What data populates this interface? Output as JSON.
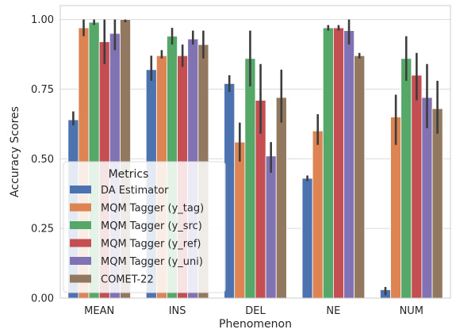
{
  "chart_data": {
    "type": "bar",
    "xlabel": "Phenomenon",
    "ylabel": "Accuracy Scores",
    "ylim": [
      0,
      1.05
    ],
    "yticks": [
      "0.00",
      "0.25",
      "0.50",
      "0.75",
      "1.00"
    ],
    "categories": [
      "MEAN",
      "INS",
      "DEL",
      "NE",
      "NUM"
    ],
    "grid": "horizontal",
    "legend": {
      "title": "Metrics",
      "placement": "lower-left"
    },
    "series": [
      {
        "name": "DA Estimator",
        "color": "#4c72b0",
        "values": [
          0.64,
          0.82,
          0.77,
          0.43,
          0.03
        ],
        "ci_low": [
          0.62,
          0.78,
          0.74,
          0.42,
          0.01
        ],
        "ci_high": [
          0.67,
          0.87,
          0.8,
          0.44,
          0.04
        ]
      },
      {
        "name": "MQM Tagger (y_tag)",
        "color": "#dd8452",
        "values": [
          0.97,
          0.87,
          0.56,
          0.6,
          0.65
        ],
        "ci_low": [
          0.94,
          0.86,
          0.49,
          0.55,
          0.55
        ],
        "ci_high": [
          1.0,
          0.89,
          0.63,
          0.66,
          0.73
        ]
      },
      {
        "name": "MQM Tagger (y_src)",
        "color": "#55a868",
        "values": [
          0.99,
          0.94,
          0.86,
          0.97,
          0.86
        ],
        "ci_low": [
          0.98,
          0.91,
          0.76,
          0.96,
          0.78
        ],
        "ci_high": [
          1.0,
          0.97,
          0.96,
          0.98,
          0.94
        ]
      },
      {
        "name": "MQM Tagger (y_ref)",
        "color": "#c44e52",
        "values": [
          0.92,
          0.87,
          0.71,
          0.97,
          0.8
        ],
        "ci_low": [
          0.84,
          0.83,
          0.59,
          0.96,
          0.71
        ],
        "ci_high": [
          1.0,
          0.91,
          0.84,
          0.98,
          0.88
        ]
      },
      {
        "name": "MQM Tagger (y_uni)",
        "color": "#8172b3",
        "values": [
          0.95,
          0.93,
          0.51,
          0.96,
          0.72
        ],
        "ci_low": [
          0.89,
          0.91,
          0.45,
          0.91,
          0.61
        ],
        "ci_high": [
          1.0,
          0.96,
          0.56,
          1.0,
          0.84
        ]
      },
      {
        "name": "COMET-22",
        "color": "#937860",
        "values": [
          1.0,
          0.91,
          0.72,
          0.87,
          0.68
        ],
        "ci_low": [
          0.99,
          0.86,
          0.63,
          0.86,
          0.59
        ],
        "ci_high": [
          1.0,
          0.96,
          0.82,
          0.88,
          0.78
        ]
      }
    ]
  }
}
